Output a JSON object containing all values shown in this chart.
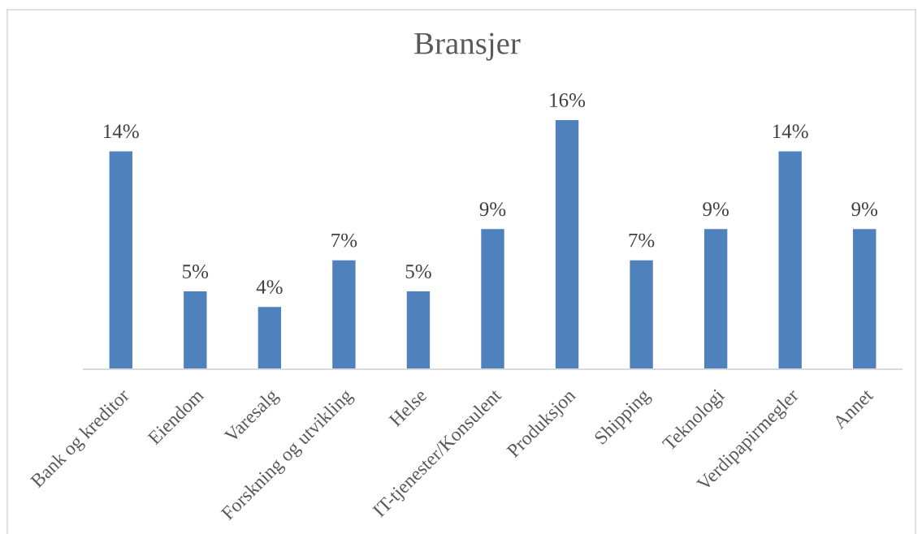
{
  "chart_data": {
    "type": "bar",
    "title": "Bransjer",
    "categories": [
      "Bank og kreditor",
      "Eiendom",
      "Varesalg",
      "Forskning og utvikling",
      "Helse",
      "IT-tjenester/Konsulent",
      "Produksjon",
      "Shipping",
      "Teknologi",
      "Verdipapirmegler",
      "Annet"
    ],
    "values": [
      14,
      5,
      4,
      7,
      5,
      9,
      16,
      7,
      9,
      14,
      9
    ],
    "value_labels": [
      "14%",
      "5%",
      "4%",
      "7%",
      "5%",
      "9%",
      "16%",
      "7%",
      "9%",
      "14%",
      "9%"
    ],
    "color": "#4f81bd"
  }
}
